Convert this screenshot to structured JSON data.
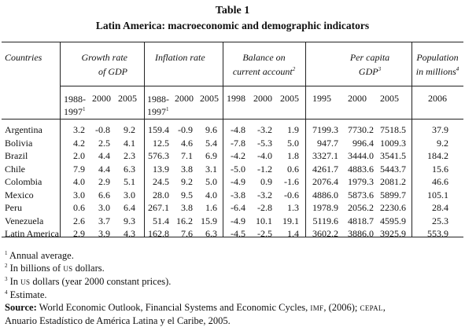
{
  "title": {
    "number": "Table 1",
    "text": "Latin America: macroeconomic and demographic indicators"
  },
  "headers": {
    "countries": "Countries",
    "growth": [
      "Growth rate",
      "of GDP"
    ],
    "inflation": "Inflation rate",
    "balance": [
      "Balance on",
      "current account",
      "2"
    ],
    "per_capita": [
      "Per capita",
      "GDP",
      "3"
    ],
    "population": [
      "Population",
      "in millions",
      "4"
    ]
  },
  "years": {
    "growth": [
      "1988-",
      "1997",
      "1",
      "2000",
      "2005"
    ],
    "inflation": [
      "1988-",
      "1997",
      "1",
      "2000",
      "2005"
    ],
    "balance": [
      "1998",
      "2000",
      "2005"
    ],
    "per_capita": [
      "1995",
      "2000",
      "2005"
    ],
    "population": [
      "2006"
    ]
  },
  "rows": [
    {
      "country": "Argentina",
      "growth": [
        "3.2",
        "-0.8",
        "9.2"
      ],
      "inflation": [
        "159.4",
        "-0.9",
        "9.6"
      ],
      "balance": [
        "-4.8",
        "-3.2",
        "1.9"
      ],
      "per_capita": [
        "7199.3",
        "7730.2",
        "7518.5"
      ],
      "population": "37.9"
    },
    {
      "country": "Bolivia",
      "growth": [
        "4.2",
        "2.5",
        "4.1"
      ],
      "inflation": [
        "12.5",
        "4.6",
        "5.4"
      ],
      "balance": [
        "-7.8",
        "-5.3",
        "5.0"
      ],
      "per_capita": [
        "947.7",
        "996.4",
        "1009.3"
      ],
      "population": "9.2"
    },
    {
      "country": "Brazil",
      "growth": [
        "2.0",
        "4.4",
        "2.3"
      ],
      "inflation": [
        "576.3",
        "7.1",
        "6.9"
      ],
      "balance": [
        "-4.2",
        "-4.0",
        "1.8"
      ],
      "per_capita": [
        "3327.1",
        "3444.0",
        "3541.5"
      ],
      "population": "184.2"
    },
    {
      "country": "Chile",
      "growth": [
        "7.9",
        "4.4",
        "6.3"
      ],
      "inflation": [
        "13.9",
        "3.8",
        "3.1"
      ],
      "balance": [
        "-5.0",
        "-1.2",
        "0.6"
      ],
      "per_capita": [
        "4261.7",
        "4883.6",
        "5443.7"
      ],
      "population": "15.6"
    },
    {
      "country": "Colombia",
      "growth": [
        "4.0",
        "2.9",
        "5.1"
      ],
      "inflation": [
        "24.5",
        "9.2",
        "5.0"
      ],
      "balance": [
        "-4.9",
        "0.9",
        "-1.6"
      ],
      "per_capita": [
        "2076.4",
        "1979.3",
        "2081.2"
      ],
      "population": "46.6"
    },
    {
      "country": "Mexico",
      "growth": [
        "3.0",
        "6.6",
        "3.0"
      ],
      "inflation": [
        "28.0",
        "9.5",
        "4.0"
      ],
      "balance": [
        "-3.8",
        "-3.2",
        "-0.6"
      ],
      "per_capita": [
        "4886.0",
        "5873.6",
        "5899.7"
      ],
      "population": "105.1"
    },
    {
      "country": "Peru",
      "growth": [
        "0.6",
        "3.0",
        "6.4"
      ],
      "inflation": [
        "267.1",
        "3.8",
        "1.6"
      ],
      "balance": [
        "-6.4",
        "-2.8",
        "1.3"
      ],
      "per_capita": [
        "1978.9",
        "2056.2",
        "2230.6"
      ],
      "population": "28.4"
    },
    {
      "country": "Venezuela",
      "growth": [
        "2.6",
        "3.7",
        "9.3"
      ],
      "inflation": [
        "51.4",
        "16.2",
        "15.9"
      ],
      "balance": [
        "-4.9",
        "10.1",
        "19.1"
      ],
      "per_capita": [
        "5119.6",
        "4818.7",
        "4595.9"
      ],
      "population": "25.3"
    },
    {
      "country": "Latin America",
      "growth": [
        "2.9",
        "3.9",
        "4.3"
      ],
      "inflation": [
        "162.8",
        "7.6",
        "6.3"
      ],
      "balance": [
        "-4.5",
        "-2.5",
        "1.4"
      ],
      "per_capita": [
        "3602.2",
        "3886.0",
        "3925.9"
      ],
      "population": "553.9"
    }
  ],
  "notes": [
    {
      "mark": "1",
      "pre": " Annual average.",
      "sc": "",
      "post": ""
    },
    {
      "mark": "2",
      "pre": " In billions of ",
      "sc": "US",
      "post": " dollars."
    },
    {
      "mark": "3",
      "pre": " In ",
      "sc": "US",
      "post": " dollars (year 2000 constant prices)."
    },
    {
      "mark": "4",
      "pre": " Estimate.",
      "sc": "",
      "post": ""
    }
  ],
  "source": {
    "label": "Source:",
    "part1": " World Economic Outlook, Financial Systems and Economic Cycles, ",
    "imf": "IMF",
    "part2": ", (2006); ",
    "cepal": "CEPAL",
    "part3": ",",
    "line2": "Anuario Estadístico de América Latina y el Caribe, 2005."
  }
}
